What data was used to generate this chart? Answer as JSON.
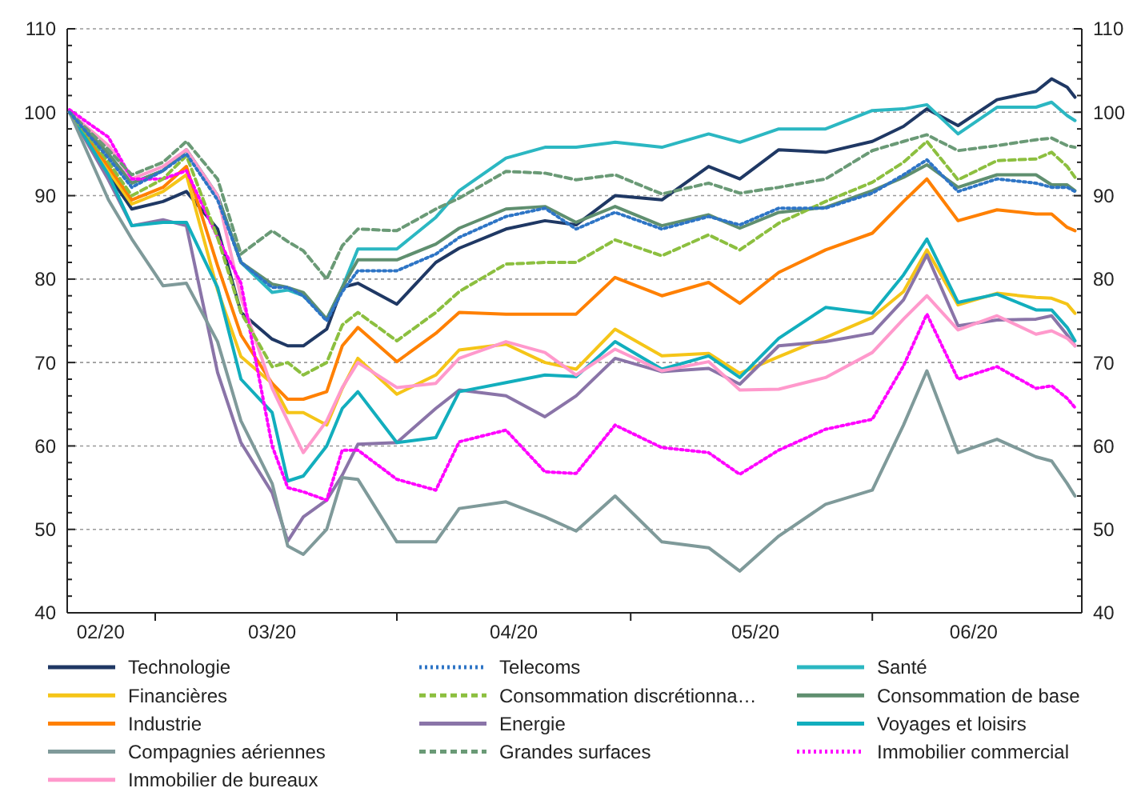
{
  "chart_data": {
    "type": "line",
    "x": [
      "2020-02-19",
      "2020-02-24",
      "2020-02-27",
      "2020-03-02",
      "2020-03-05",
      "2020-03-09",
      "2020-03-12",
      "2020-03-16",
      "2020-03-18",
      "2020-03-20",
      "2020-03-23",
      "2020-03-25",
      "2020-03-27",
      "2020-04-01",
      "2020-04-06",
      "2020-04-09",
      "2020-04-15",
      "2020-04-20",
      "2020-04-24",
      "2020-04-29",
      "2020-05-05",
      "2020-05-11",
      "2020-05-15",
      "2020-05-20",
      "2020-05-26",
      "2020-06-01",
      "2020-06-05",
      "2020-06-08",
      "2020-06-12",
      "2020-06-17",
      "2020-06-22",
      "2020-06-24",
      "2020-06-26",
      "2020-06-27"
    ],
    "series": [
      {
        "name": "Technologie",
        "color": "#1f3864",
        "line_style": "solid",
        "values": [
          100,
          92.5,
          88.4,
          89.3,
          90.5,
          86,
          76,
          72.8,
          72,
          72,
          74,
          79,
          79.5,
          77,
          82,
          83.7,
          86,
          87,
          86.5,
          90,
          89.5,
          93.5,
          92,
          95.5,
          95.2,
          96.5,
          98.3,
          100.4,
          98.4,
          101.5,
          102.5,
          104,
          103,
          101.8
        ]
      },
      {
        "name": "Telecoms",
        "color": "#2e75c6",
        "line_style": "dotted",
        "values": [
          100,
          94.5,
          91,
          93,
          95,
          89.5,
          82,
          79,
          79,
          78,
          75,
          78.5,
          81,
          81,
          83,
          85,
          87.5,
          88.5,
          86,
          88,
          86,
          87.5,
          86.5,
          88.5,
          88.5,
          90.3,
          92.5,
          94.3,
          90.5,
          92,
          91.5,
          91,
          91,
          90.5
        ]
      },
      {
        "name": "Santé",
        "color": "#2bb7c2",
        "line_style": "solid",
        "values": [
          100,
          95,
          91.5,
          93,
          95.5,
          90,
          82,
          78.4,
          78.7,
          78,
          75.2,
          79,
          83.6,
          83.6,
          87.4,
          90.6,
          94.5,
          95.8,
          95.8,
          96.4,
          95.8,
          97.4,
          96.4,
          98,
          98,
          100.2,
          100.4,
          100.9,
          97.4,
          100.6,
          100.6,
          101.2,
          99.6,
          99
        ]
      },
      {
        "name": "Financières",
        "color": "#f5c518",
        "line_style": "solid",
        "values": [
          100,
          93,
          89,
          90.5,
          92.5,
          78.7,
          70.7,
          67.5,
          64,
          64,
          62.5,
          66.9,
          70.5,
          66.2,
          68.5,
          71.5,
          72.2,
          70,
          69.2,
          74,
          70.8,
          71.1,
          68.7,
          70.7,
          73,
          75.4,
          78.5,
          83.5,
          76.9,
          78.3,
          77.8,
          77.7,
          77,
          75.9
        ]
      },
      {
        "name": "Consommation discrétionna…",
        "color": "#8cbf3f",
        "line_style": "dashed",
        "values": [
          100,
          94,
          90,
          92,
          94.8,
          85,
          76,
          69.5,
          70,
          68.5,
          70,
          74.5,
          76,
          72.6,
          76,
          78.5,
          81.8,
          82,
          82,
          84.7,
          82.8,
          85.3,
          83.5,
          86.7,
          89.3,
          91.6,
          94,
          96.5,
          91.9,
          94.2,
          94.4,
          95.2,
          93.5,
          92.2
        ]
      },
      {
        "name": "Consommation de base",
        "color": "#5f8f6f",
        "line_style": "solid",
        "values": [
          100,
          95,
          91.5,
          93,
          95.5,
          90,
          82,
          79.4,
          79,
          78.4,
          75.2,
          79,
          82.3,
          82.3,
          84.2,
          86.1,
          88.4,
          88.7,
          86.8,
          88.7,
          86.4,
          87.7,
          86.1,
          88,
          88.6,
          90.6,
          92.2,
          93.7,
          91,
          92.5,
          92.5,
          91.3,
          91.3,
          90.6
        ]
      },
      {
        "name": "Industrie",
        "color": "#ff8000",
        "line_style": "solid",
        "values": [
          100,
          93.5,
          89.5,
          91,
          93.5,
          81.6,
          73.3,
          67.5,
          65.6,
          65.6,
          66.5,
          72,
          74.2,
          70.1,
          73.5,
          76,
          75.8,
          75.8,
          75.8,
          80.2,
          78,
          79.6,
          77.1,
          80.8,
          83.5,
          85.5,
          89.3,
          92,
          87,
          88.3,
          87.8,
          87.8,
          86.2,
          85.8
        ]
      },
      {
        "name": "Energie",
        "color": "#8a74a8",
        "line_style": "solid",
        "values": [
          100,
          91.9,
          86.4,
          87.1,
          86.4,
          68.8,
          60.4,
          54.4,
          48.6,
          51.5,
          53.5,
          56.5,
          60.2,
          60.4,
          64.5,
          66.7,
          66,
          63.5,
          66,
          70.5,
          68.9,
          69.3,
          67.4,
          72,
          72.5,
          73.5,
          77.5,
          82.9,
          74.4,
          75.1,
          75.2,
          75.6,
          73.3,
          72
        ]
      },
      {
        "name": "Voyages et loisirs",
        "color": "#12aebd",
        "line_style": "solid",
        "values": [
          100,
          92.5,
          86.4,
          86.8,
          86.8,
          79,
          68,
          64,
          55.8,
          56.4,
          60,
          64.5,
          66.5,
          60.4,
          61,
          66.5,
          67.6,
          68.5,
          68.3,
          72.5,
          69.2,
          70.8,
          68.2,
          72.9,
          76.6,
          75.9,
          80.5,
          84.8,
          77.2,
          78.2,
          76.3,
          76.3,
          74.2,
          72.6
        ]
      },
      {
        "name": "Compagnies aériennes",
        "color": "#7f9a9a",
        "line_style": "solid",
        "values": [
          100,
          89.5,
          84.8,
          79.2,
          79.5,
          72.5,
          63,
          55.5,
          48,
          47,
          50,
          56.2,
          56,
          48.5,
          48.5,
          52.5,
          53.3,
          51.5,
          49.8,
          54,
          48.5,
          47.8,
          45,
          49.2,
          53,
          54.7,
          62.5,
          69,
          59.2,
          60.8,
          58.7,
          58.2,
          55.5,
          54
        ]
      },
      {
        "name": "Grandes surfaces",
        "color": "#6a9a76",
        "line_style": "dashed",
        "values": [
          100,
          95.5,
          92.5,
          94,
          96.5,
          92,
          83,
          85.8,
          84.5,
          83.4,
          80,
          84,
          86,
          85.8,
          88.4,
          89.7,
          92.9,
          92.7,
          91.9,
          92.5,
          90.2,
          91.5,
          90.3,
          91,
          92,
          95.4,
          96.5,
          97.3,
          95.4,
          96,
          96.7,
          96.9,
          96,
          95.8
        ]
      },
      {
        "name": "Immobilier commercial",
        "color": "#ff00ff",
        "line_style": "dotted",
        "values": [
          100.3,
          97,
          92,
          92,
          93,
          85,
          79.5,
          60,
          55,
          54.5,
          53.5,
          59.5,
          59.5,
          56,
          54.7,
          60.5,
          61.9,
          56.9,
          56.7,
          62.5,
          59.8,
          59.2,
          56.6,
          59.5,
          62,
          63.2,
          69.6,
          75.8,
          68,
          69.5,
          66.9,
          67.2,
          65.7,
          64.6
        ]
      },
      {
        "name": "Immobilier de bureaux",
        "color": "#ff99cc",
        "line_style": "solid",
        "values": [
          100,
          96,
          92,
          93.5,
          95.5,
          90,
          77.8,
          66.9,
          63,
          59.2,
          63,
          67,
          70,
          67,
          67.5,
          70.5,
          72.5,
          71.2,
          68.5,
          71.6,
          69,
          70.1,
          66.7,
          66.8,
          68.2,
          71.2,
          75.2,
          78,
          73.9,
          75.6,
          73.4,
          73.8,
          72.9,
          72
        ]
      }
    ],
    "xlim": [
      "2020-02-18T17:00",
      "2020-06-27T21:00"
    ],
    "xticks": [
      {
        "value": "2020-02-23",
        "label": "02/20"
      },
      {
        "value": "2020-03-01",
        "label": null
      },
      {
        "value": "2020-03-16",
        "label": "03/20"
      },
      {
        "value": "2020-04-01",
        "label": null
      },
      {
        "value": "2020-04-16",
        "label": "04/20"
      },
      {
        "value": "2020-05-01",
        "label": null
      },
      {
        "value": "2020-05-17",
        "label": "05/20"
      },
      {
        "value": "2020-06-01",
        "label": null
      },
      {
        "value": "2020-06-14",
        "label": "06/20"
      }
    ],
    "ylim": [
      40,
      110
    ],
    "yticks": [
      40,
      {
        "value": 42,
        "label": null
      },
      {
        "value": 44,
        "label": null
      },
      {
        "value": 46,
        "label": null
      },
      {
        "value": 48,
        "label": null
      },
      50,
      {
        "value": 52,
        "label": null
      },
      {
        "value": 54,
        "label": null
      },
      {
        "value": 56,
        "label": null
      },
      {
        "value": 58,
        "label": null
      },
      60,
      {
        "value": 62,
        "label": null
      },
      {
        "value": 64,
        "label": null
      },
      {
        "value": 66,
        "label": null
      },
      {
        "value": 68,
        "label": null
      },
      70,
      {
        "value": 72,
        "label": null
      },
      {
        "value": 74,
        "label": null
      },
      {
        "value": 76,
        "label": null
      },
      {
        "value": 78,
        "label": null
      },
      80,
      {
        "value": 82,
        "label": null
      },
      {
        "value": 84,
        "label": null
      },
      {
        "value": 86,
        "label": null
      },
      {
        "value": 88,
        "label": null
      },
      90,
      {
        "value": 92,
        "label": null
      },
      {
        "value": 94,
        "label": null
      },
      {
        "value": 96,
        "label": null
      },
      {
        "value": 98,
        "label": null
      },
      100,
      {
        "value": 102,
        "label": null
      },
      {
        "value": 104,
        "label": null
      },
      {
        "value": 106,
        "label": null
      },
      {
        "value": 108,
        "label": null
      },
      110
    ],
    "y2lim": [
      40,
      110
    ],
    "y2ticks": [
      40,
      {
        "value": 42,
        "label": null
      },
      {
        "value": 44,
        "label": null
      },
      {
        "value": 46,
        "label": null
      },
      {
        "value": 48,
        "label": null
      },
      50,
      {
        "value": 52,
        "label": null
      },
      {
        "value": 54,
        "label": null
      },
      {
        "value": 56,
        "label": null
      },
      {
        "value": 58,
        "label": null
      },
      60,
      {
        "value": 62,
        "label": null
      },
      {
        "value": 64,
        "label": null
      },
      {
        "value": 66,
        "label": null
      },
      {
        "value": 68,
        "label": null
      },
      70,
      {
        "value": 72,
        "label": null
      },
      {
        "value": 74,
        "label": null
      },
      {
        "value": 76,
        "label": null
      },
      {
        "value": 78,
        "label": null
      },
      80,
      {
        "value": 82,
        "label": null
      },
      {
        "value": 84,
        "label": null
      },
      {
        "value": 86,
        "label": null
      },
      {
        "value": 88,
        "label": null
      },
      90,
      {
        "value": 92,
        "label": null
      },
      {
        "value": 94,
        "label": null
      },
      {
        "value": 96,
        "label": null
      },
      {
        "value": 98,
        "label": null
      },
      100,
      {
        "value": 102,
        "label": null
      },
      {
        "value": 104,
        "label": null
      },
      {
        "value": 106,
        "label": null
      },
      {
        "value": 108,
        "label": null
      },
      110
    ],
    "grid": "y",
    "legend": "bottom"
  }
}
